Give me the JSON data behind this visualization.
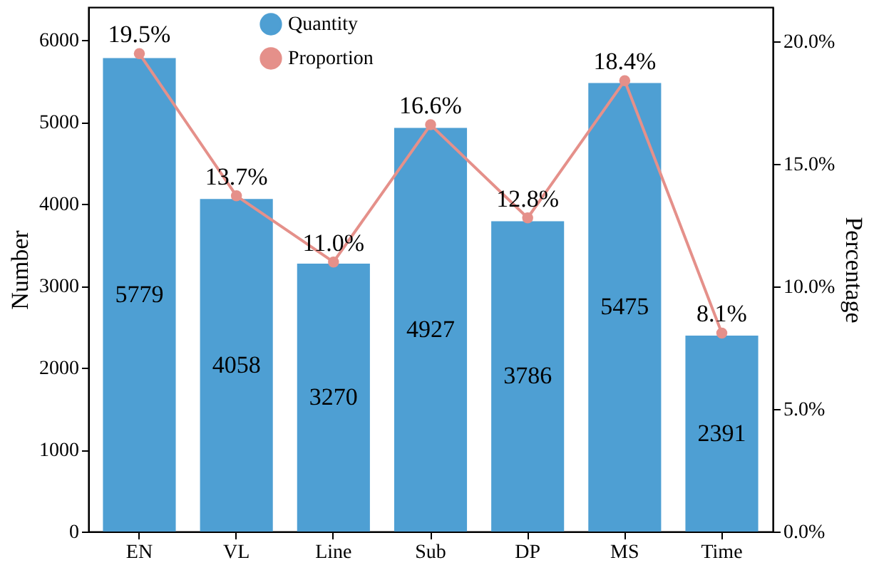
{
  "chart_data": {
    "type": "bar",
    "categories": [
      "EN",
      "VL",
      "Line",
      "Sub",
      "DP",
      "MS",
      "Time"
    ],
    "ylabel": "Number",
    "y2label": "Percentage",
    "series": [
      {
        "name": "Quantity",
        "color": "#4e9fd3",
        "values": [
          5779,
          4058,
          3270,
          4927,
          3786,
          5475,
          2391
        ],
        "value_labels": [
          "5779",
          "4058",
          "3270",
          "4927",
          "3786",
          "5475",
          "2391"
        ]
      },
      {
        "name": "Proportion",
        "type": "line",
        "axis": "y2",
        "color": "#e5908a",
        "values": [
          19.5,
          13.7,
          11.0,
          16.6,
          12.8,
          18.4,
          8.1
        ],
        "value_labels": [
          "19.5%",
          "13.7%",
          "11.0%",
          "16.6%",
          "12.8%",
          "18.4%",
          "8.1%"
        ]
      }
    ],
    "ylim": [
      0,
      6400
    ],
    "yticks": [
      0,
      1000,
      2000,
      3000,
      4000,
      5000,
      6000
    ],
    "y2lim": [
      0,
      21.4
    ],
    "y2ticks": [
      {
        "value": 0,
        "label": "0.0%"
      },
      {
        "value": 5,
        "label": "5.0%"
      },
      {
        "value": 10,
        "label": "10.0%"
      },
      {
        "value": 15,
        "label": "15.0%"
      },
      {
        "value": 20,
        "label": "20.0%"
      }
    ],
    "legend": "top",
    "marker": "circle",
    "grid": false
  }
}
